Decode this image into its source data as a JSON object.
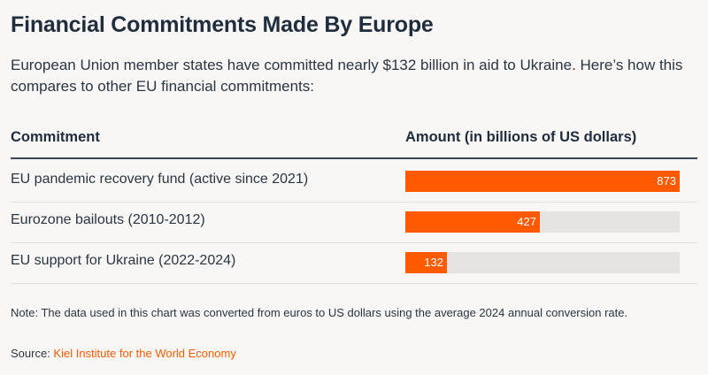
{
  "title": "Financial Commitments Made By Europe",
  "subtitle": "European Union member states have committed nearly $132 billion in aid to Ukraine. Here’s how this compares to other EU financial commitments:",
  "columns": {
    "commitment": "Commitment",
    "amount": "Amount (in billions of US dollars)"
  },
  "chart_data": {
    "type": "bar",
    "orientation": "horizontal",
    "categories": [
      "EU pandemic recovery fund (active since 2021)",
      "Eurozone bailouts (2010-2012)",
      "EU support for Ukraine (2022-2024)"
    ],
    "values": [
      873,
      427,
      132
    ],
    "value_labels": [
      "873",
      "427",
      "132"
    ],
    "xlim": [
      0,
      873
    ],
    "bar_color": "#ff5a00",
    "track_color": "#e6e4e2"
  },
  "note": "Note: The data used in this chart was converted from euros to US dollars using the average 2024 annual conversion rate.",
  "source": {
    "label": "Source: ",
    "link_text": "Kiel Institute for the World Economy"
  }
}
